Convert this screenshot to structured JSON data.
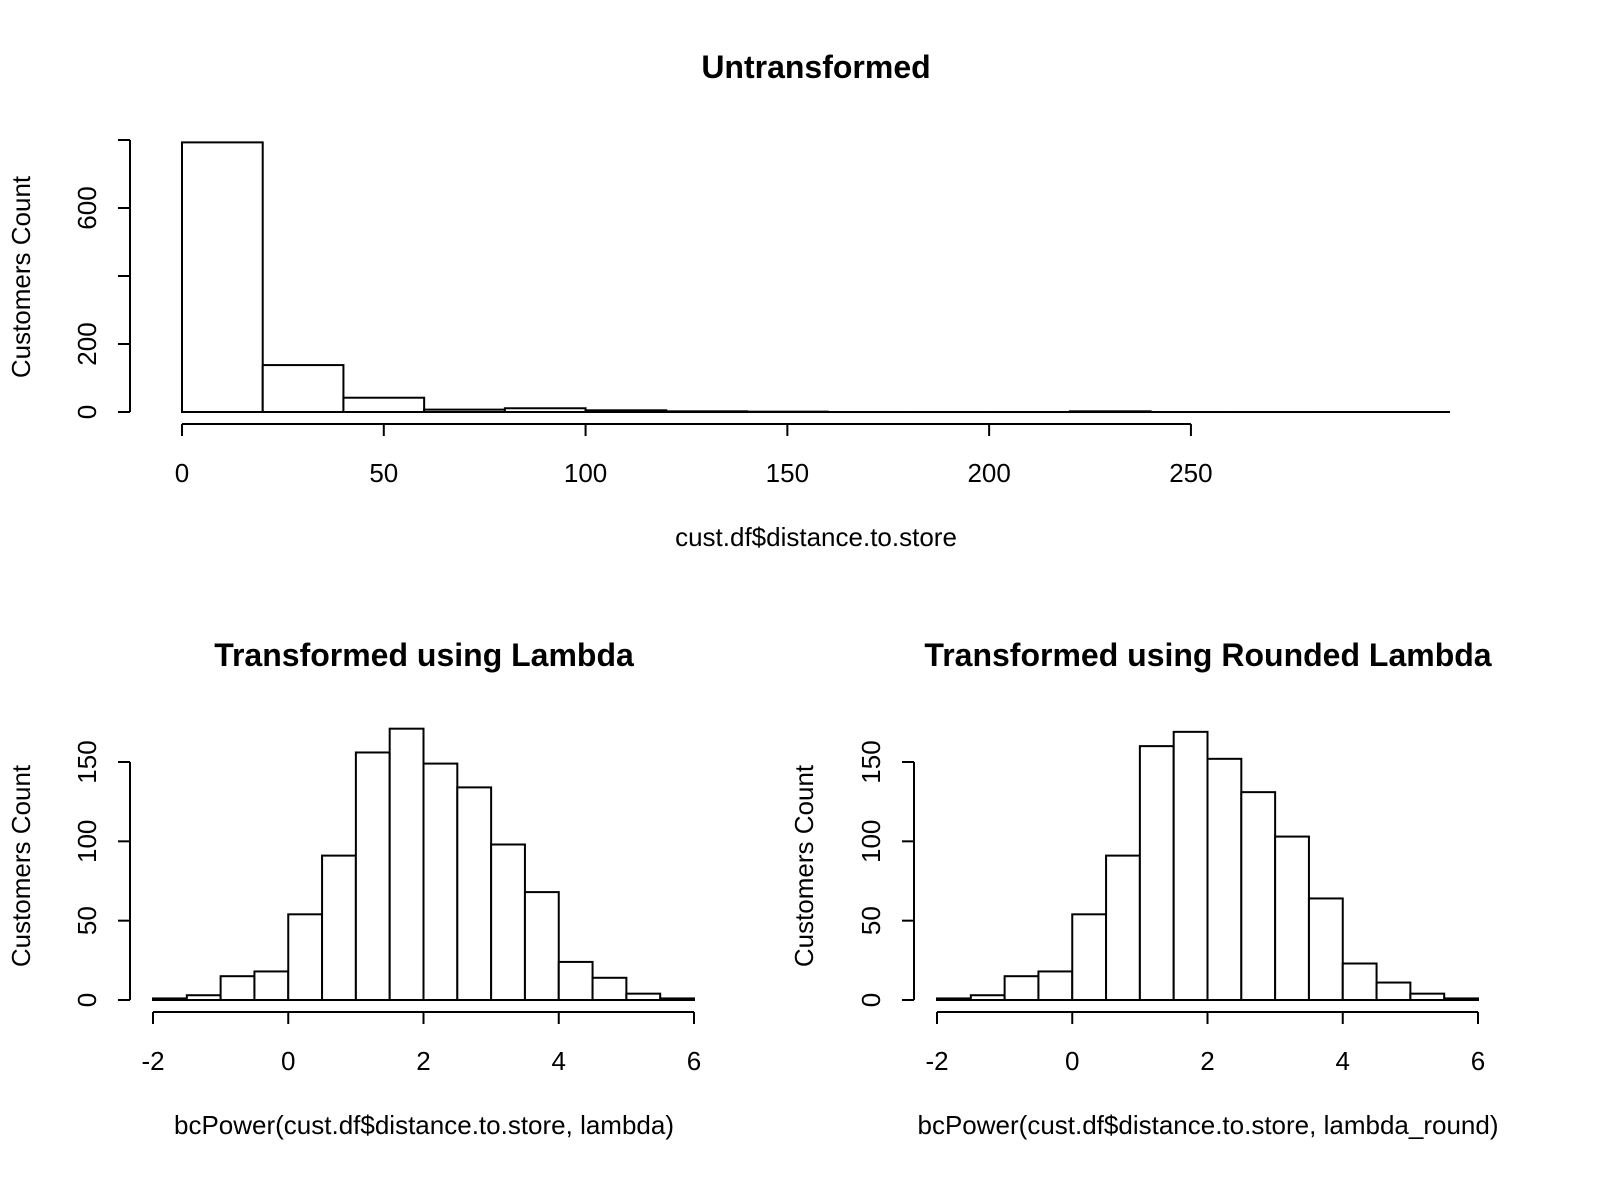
{
  "chart_data": [
    {
      "type": "bar",
      "title": "Untransformed",
      "xlabel": "cust.df$distance.to.store",
      "ylabel": "Customers Count",
      "bin_width": 20,
      "bin_start": 0,
      "values": [
        793,
        138,
        42,
        7,
        11,
        5,
        2,
        1,
        0,
        0,
        0,
        2,
        0,
        0
      ],
      "xlim": [
        0,
        280
      ],
      "ylim": [
        0,
        800
      ],
      "xticks": [
        0,
        50,
        100,
        150,
        200,
        250
      ],
      "yticks": [
        0,
        200,
        400,
        600,
        800
      ],
      "ytick_labels": [
        "0",
        "200",
        "",
        "600",
        ""
      ]
    },
    {
      "type": "bar",
      "title": "Transformed using Lambda",
      "xlabel": "bcPower(cust.df$distance.to.store, lambda)",
      "ylabel": "Customers Count",
      "bin_width": 0.5,
      "bin_start": -2,
      "values": [
        1,
        3,
        15,
        18,
        54,
        91,
        156,
        171,
        149,
        134,
        98,
        68,
        24,
        14,
        4,
        1
      ],
      "xlim": [
        -2,
        6
      ],
      "ylim": [
        0,
        150
      ],
      "xticks": [
        -2,
        0,
        2,
        4,
        6
      ],
      "yticks": [
        0,
        50,
        100,
        150
      ],
      "ytick_labels": [
        "0",
        "50",
        "100",
        "150"
      ]
    },
    {
      "type": "bar",
      "title": "Transformed using Rounded Lambda",
      "xlabel": "bcPower(cust.df$distance.to.store, lambda_round)",
      "ylabel": "Customers Count",
      "bin_width": 0.5,
      "bin_start": -2,
      "values": [
        1,
        3,
        15,
        18,
        54,
        91,
        160,
        169,
        152,
        131,
        103,
        64,
        23,
        11,
        4,
        1
      ],
      "xlim": [
        -2,
        6
      ],
      "ylim": [
        0,
        150
      ],
      "xticks": [
        -2,
        0,
        2,
        4,
        6
      ],
      "yticks": [
        0,
        50,
        100,
        150
      ],
      "ytick_labels": [
        "0",
        "50",
        "100",
        "150"
      ]
    }
  ]
}
